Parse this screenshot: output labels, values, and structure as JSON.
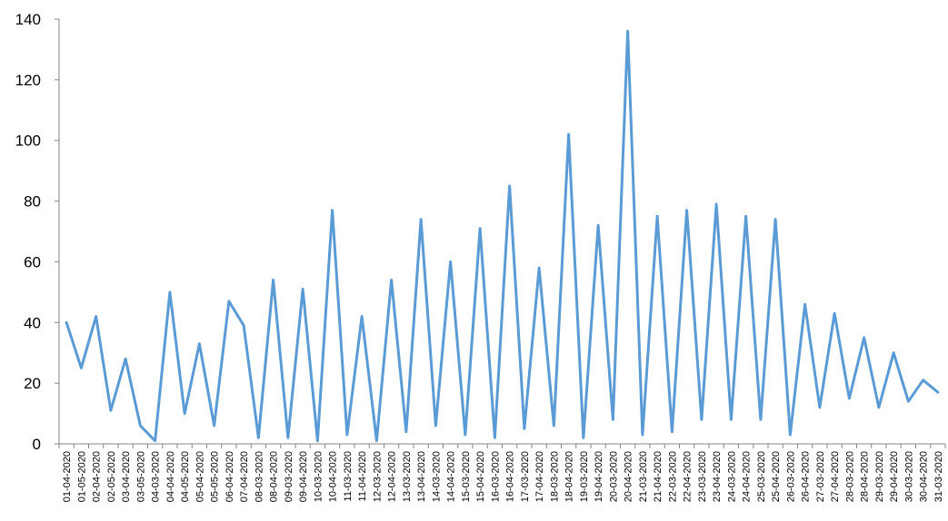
{
  "chart_data": {
    "type": "line",
    "title": "",
    "xlabel": "",
    "ylabel": "",
    "ylim": [
      0,
      140
    ],
    "yticks": [
      0,
      20,
      40,
      60,
      80,
      100,
      120,
      140
    ],
    "grid": false,
    "legend": "none",
    "categories": [
      "01-04-2020",
      "01-05-2020",
      "02-04-2020",
      "02-05-2020",
      "03-04-2020",
      "03-05-2020",
      "04-03-2020",
      "04-04-2020",
      "04-05-2020",
      "05-04-2020",
      "05-05-2020",
      "06-04-2020",
      "07-04-2020",
      "08-03-2020",
      "08-04-2020",
      "09-03-2020",
      "09-04-2020",
      "10-03-2020",
      "10-04-2020",
      "11-03-2020",
      "11-04-2020",
      "12-03-2020",
      "12-04-2020",
      "13-03-2020",
      "13-04-2020",
      "14-03-2020",
      "14-04-2020",
      "15-03-2020",
      "15-04-2020",
      "16-03-2020",
      "16-04-2020",
      "17-03-2020",
      "17-04-2020",
      "18-03-2020",
      "18-04-2020",
      "19-03-2020",
      "19-04-2020",
      "20-03-2020",
      "20-04-2020",
      "21-03-2020",
      "21-04-2020",
      "22-03-2020",
      "22-04-2020",
      "23-03-2020",
      "23-04-2020",
      "24-03-2020",
      "24-04-2020",
      "25-03-2020",
      "25-04-2020",
      "26-03-2020",
      "26-04-2020",
      "27-03-2020",
      "27-04-2020",
      "28-03-2020",
      "28-04-2020",
      "29-03-2020",
      "29-04-2020",
      "30-03-2020",
      "30-04-2020",
      "31-03-2020"
    ],
    "series": [
      {
        "color": "#5B9BD5",
        "values": [
          40,
          25,
          42,
          11,
          28,
          6,
          1,
          50,
          10,
          33,
          6,
          47,
          39,
          2,
          54,
          2,
          51,
          1,
          77,
          3,
          42,
          1,
          54,
          4,
          74,
          6,
          60,
          3,
          71,
          2,
          85,
          5,
          58,
          6,
          102,
          2,
          72,
          8,
          136,
          3,
          75,
          4,
          77,
          8,
          79,
          8,
          75,
          8,
          74,
          3,
          46,
          12,
          43,
          15,
          35,
          12,
          30,
          14,
          21,
          17
        ]
      }
    ]
  }
}
